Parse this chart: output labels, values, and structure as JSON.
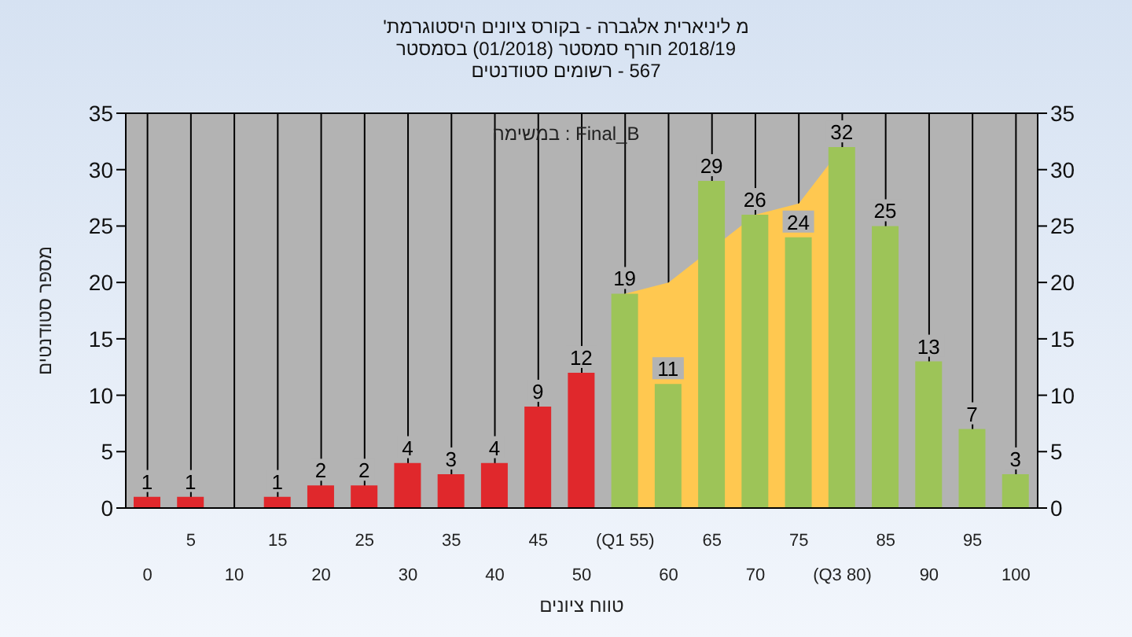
{
  "chart_data": {
    "type": "bar",
    "title": "מ ליניארית אלגברה - בקורס ציונים היסטוגרמת'",
    "subtitle": [
      "2018/19 חורף סמסטר (01/2018) בסמסטר",
      "567 - רשומים סטודנטים"
    ],
    "xlabel": "טווח ציונים",
    "ylabel": "מספר סטודנטים",
    "annotations": [
      "Final_B : במשימה"
    ],
    "categories": [
      "0",
      "5",
      "10",
      "15",
      "20",
      "25",
      "30",
      "35",
      "40",
      "45",
      "50",
      "(Q1 55)",
      "60",
      "65",
      "70",
      "75",
      "(Q3 80)",
      "85",
      "90",
      "95",
      "100"
    ],
    "series": [
      {
        "type": "area",
        "color": "#ffc850",
        "values": [
          null,
          null,
          null,
          null,
          null,
          null,
          null,
          null,
          null,
          null,
          null,
          19,
          20,
          null,
          26,
          27,
          32,
          null,
          null,
          null,
          null
        ]
      },
      {
        "values": [
          1,
          1,
          null,
          1,
          2,
          2,
          4,
          3,
          4,
          9,
          12,
          19,
          11,
          29,
          26,
          24,
          32,
          25,
          13,
          7,
          3
        ],
        "value_labels": [
          "1",
          "1",
          null,
          "1",
          "2",
          "2",
          "4",
          "3",
          "4",
          "9",
          "12",
          "19",
          "11",
          "29",
          "26",
          "24",
          "32",
          "25",
          "13",
          "7",
          "3"
        ],
        "colors": [
          "#e0282c",
          "#e0282c",
          "#e0282c",
          "#e0282c",
          "#e0282c",
          "#e0282c",
          "#e0282c",
          "#e0282c",
          "#e0282c",
          "#e0282c",
          "#e0282c",
          "#9dc458",
          "#9dc458",
          "#9dc458",
          "#9dc458",
          "#9dc458",
          "#9dc458",
          "#9dc458",
          "#9dc458",
          "#9dc458",
          "#9dc458"
        ]
      }
    ],
    "ylim": [
      0,
      35
    ],
    "yticks": [
      0,
      5,
      10,
      15,
      20,
      25,
      30,
      35
    ],
    "y2lim": [
      0,
      35
    ],
    "y2ticks": [
      0,
      5,
      10,
      15,
      20,
      25,
      30,
      35
    ],
    "grid": true
  }
}
